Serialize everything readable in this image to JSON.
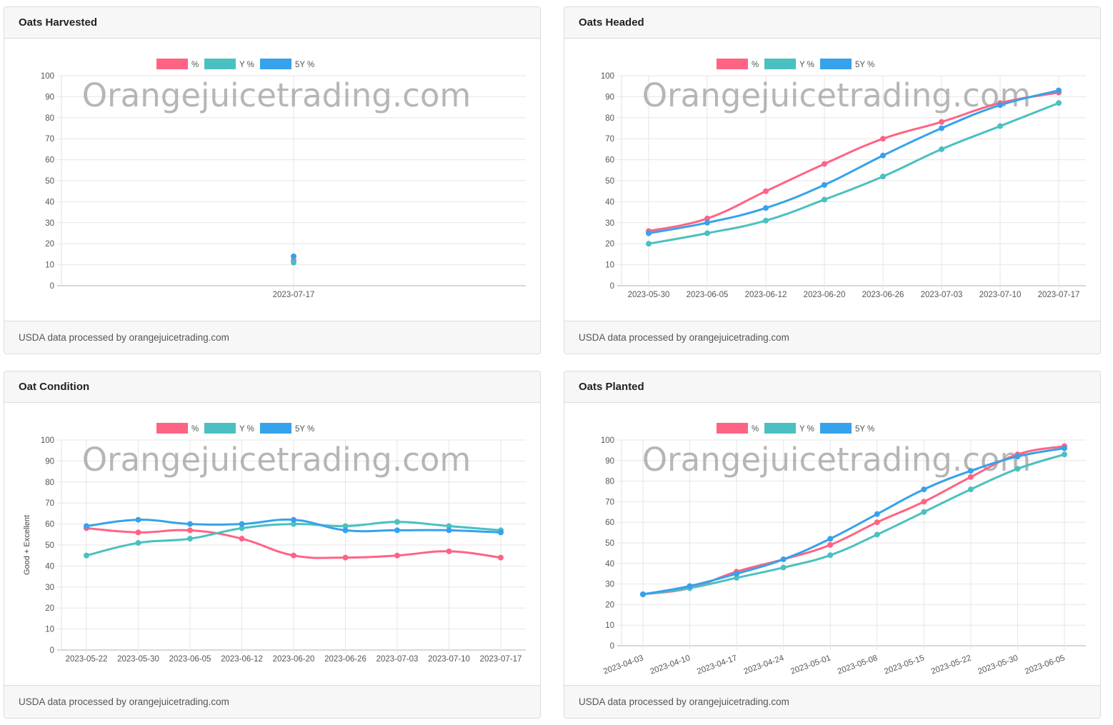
{
  "watermark": "Orangejuicetrading.com",
  "footer_text": "USDA data processed by orangejuicetrading.com",
  "legend": [
    {
      "label": "%",
      "color": "#ff6384"
    },
    {
      "label": "Y %",
      "color": "#4bc0c0"
    },
    {
      "label": "5Y %",
      "color": "#36a2eb"
    }
  ],
  "cards": [
    {
      "title": "Oats Harvested"
    },
    {
      "title": "Oats Headed"
    },
    {
      "title": "Oat Condition"
    },
    {
      "title": "Oats Planted"
    }
  ],
  "chart_data": [
    {
      "type": "line",
      "title": "Oats Harvested",
      "ylabel": "",
      "ylim": [
        0,
        100
      ],
      "yticks": [
        0,
        10,
        20,
        30,
        40,
        50,
        60,
        70,
        80,
        90,
        100
      ],
      "categories": [
        "2023-07-17"
      ],
      "series": [
        {
          "name": "%",
          "values": [
            12
          ]
        },
        {
          "name": "Y %",
          "values": [
            11
          ]
        },
        {
          "name": "5Y %",
          "values": [
            14
          ]
        }
      ],
      "grid": true,
      "legend": "top-center"
    },
    {
      "type": "line",
      "title": "Oats Headed",
      "ylabel": "",
      "ylim": [
        0,
        100
      ],
      "yticks": [
        0,
        10,
        20,
        30,
        40,
        50,
        60,
        70,
        80,
        90,
        100
      ],
      "categories": [
        "2023-05-30",
        "2023-06-05",
        "2023-06-12",
        "2023-06-20",
        "2023-06-26",
        "2023-07-03",
        "2023-07-10",
        "2023-07-17"
      ],
      "series": [
        {
          "name": "%",
          "values": [
            26,
            32,
            45,
            58,
            70,
            78,
            87,
            92
          ]
        },
        {
          "name": "Y %",
          "values": [
            20,
            25,
            31,
            41,
            52,
            65,
            76,
            87
          ]
        },
        {
          "name": "5Y %",
          "values": [
            25,
            30,
            37,
            48,
            62,
            75,
            86,
            93
          ]
        }
      ],
      "grid": true,
      "legend": "top-center"
    },
    {
      "type": "line",
      "title": "Oat Condition",
      "ylabel": "Good + Excellent",
      "ylim": [
        0,
        100
      ],
      "yticks": [
        0,
        10,
        20,
        30,
        40,
        50,
        60,
        70,
        80,
        90,
        100
      ],
      "categories": [
        "2023-05-22",
        "2023-05-30",
        "2023-06-05",
        "2023-06-12",
        "2023-06-20",
        "2023-06-26",
        "2023-07-03",
        "2023-07-10",
        "2023-07-17"
      ],
      "series": [
        {
          "name": "%",
          "values": [
            58,
            56,
            57,
            53,
            45,
            44,
            45,
            47,
            44
          ]
        },
        {
          "name": "Y %",
          "values": [
            45,
            51,
            53,
            58,
            60,
            59,
            61,
            59,
            57
          ]
        },
        {
          "name": "5Y %",
          "values": [
            59,
            62,
            60,
            60,
            62,
            57,
            57,
            57,
            56
          ]
        }
      ],
      "grid": true,
      "legend": "top-center"
    },
    {
      "type": "line",
      "title": "Oats Planted",
      "ylabel": "",
      "ylim": [
        0,
        100
      ],
      "yticks": [
        0,
        10,
        20,
        30,
        40,
        50,
        60,
        70,
        80,
        90,
        100
      ],
      "categories": [
        "2023-04-03",
        "2023-04-10",
        "2023-04-17",
        "2023-04-24",
        "2023-05-01",
        "2023-05-08",
        "2023-05-15",
        "2023-05-22",
        "2023-05-30",
        "2023-06-05"
      ],
      "series": [
        {
          "name": "%",
          "values": [
            25,
            28,
            36,
            42,
            49,
            60,
            70,
            82,
            93,
            97
          ]
        },
        {
          "name": "Y %",
          "values": [
            25,
            28,
            33,
            38,
            44,
            54,
            65,
            76,
            86,
            93
          ]
        },
        {
          "name": "5Y %",
          "values": [
            25,
            29,
            35,
            42,
            52,
            64,
            76,
            85,
            92,
            96
          ]
        }
      ],
      "grid": true,
      "legend": "top-center"
    }
  ]
}
